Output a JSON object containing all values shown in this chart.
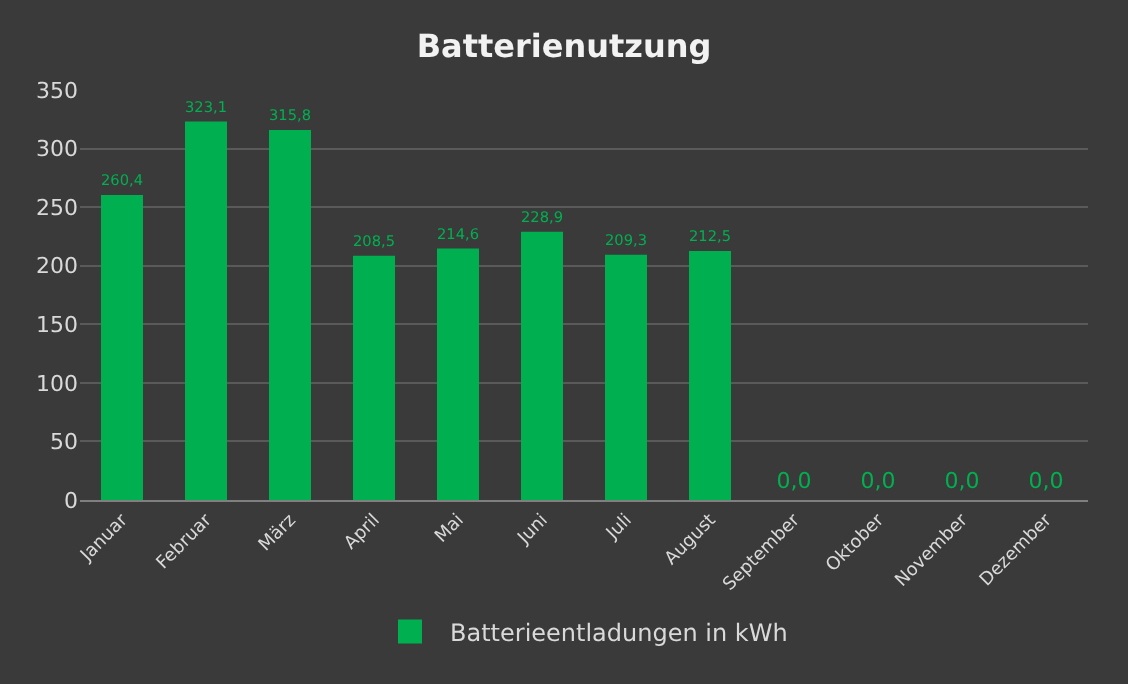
{
  "chart_data": {
    "type": "bar",
    "title": "Batterienutzung",
    "categories": [
      "Januar",
      "Februar",
      "März",
      "April",
      "Mai",
      "Juni",
      "Juli",
      "August",
      "September",
      "Oktober",
      "November",
      "Dezember"
    ],
    "series": [
      {
        "name": "Batterieentladungen in kWh",
        "color": "#00b050",
        "values": [
          260.4,
          323.1,
          315.8,
          208.5,
          214.6,
          228.9,
          209.3,
          212.5,
          0,
          0,
          0,
          0
        ],
        "value_labels": [
          "260,4",
          "323,1",
          "315,8",
          "208,5",
          "214,6",
          "228,9",
          "209,3",
          "212,5",
          "0,0",
          "0,0",
          "0,0",
          "0,0"
        ]
      }
    ],
    "ylim": [
      0,
      350
    ],
    "yticks": [
      0,
      50,
      100,
      150,
      200,
      250,
      300,
      350
    ],
    "grid": "y",
    "legend": "bottom"
  }
}
